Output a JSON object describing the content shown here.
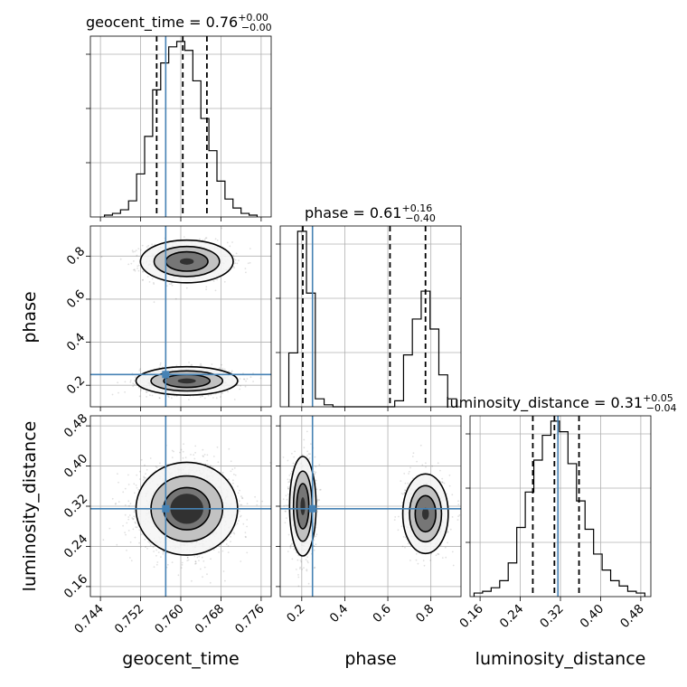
{
  "chart_data": {
    "type": "corner",
    "parameters": [
      "geocent_time",
      "phase",
      "luminosity_distance"
    ],
    "truths": {
      "geocent_time": 0.757,
      "phase": 0.25,
      "luminosity_distance": 0.315
    },
    "colors": {
      "truth": "#4682b4",
      "hist": "#000000",
      "grid": "#b0b0b0"
    },
    "panels": [
      {
        "id": "geocent_time",
        "kind": "hist1d",
        "title": {
          "text": "geocent_time = 0.76",
          "sup": "+0.00",
          "sub": "−0.00"
        },
        "xlim": [
          0.742,
          0.778
        ],
        "xticks": [
          0.744,
          0.752,
          0.76,
          0.768,
          0.776
        ],
        "xtick_labels": [
          "0.744",
          "0.752",
          "0.760",
          "0.768",
          "0.776"
        ],
        "bin_edges": [
          0.7448,
          0.7464,
          0.748,
          0.7496,
          0.7512,
          0.7528,
          0.7544,
          0.756,
          0.7576,
          0.7592,
          0.7608,
          0.7624,
          0.764,
          0.7656,
          0.7672,
          0.7688,
          0.7704,
          0.772,
          0.7736,
          0.7752
        ],
        "counts": [
          0.01,
          0.02,
          0.04,
          0.09,
          0.24,
          0.45,
          0.71,
          0.86,
          0.95,
          0.98,
          0.93,
          0.76,
          0.55,
          0.37,
          0.2,
          0.1,
          0.05,
          0.02,
          0.01
        ],
        "quantiles": [
          0.7552,
          0.7604,
          0.7652
        ],
        "truth": 0.757
      },
      {
        "id": "phase",
        "kind": "hist1d",
        "title": {
          "text": "phase = 0.61",
          "sup": "+0.16",
          "sub": "−0.40"
        },
        "xlim": [
          0.1,
          0.94
        ],
        "xticks": [
          0.2,
          0.4,
          0.6,
          0.8
        ],
        "xtick_labels": [
          "0.2",
          "0.4",
          "0.6",
          "0.8"
        ],
        "bin_edges": [
          0.14,
          0.181,
          0.222,
          0.263,
          0.304,
          0.345,
          0.386,
          0.427,
          0.468,
          0.509,
          0.55,
          0.591,
          0.632,
          0.673,
          0.714,
          0.755,
          0.796,
          0.837,
          0.878,
          0.919
        ],
        "counts": [
          0.27,
          0.88,
          0.57,
          0.04,
          0.01,
          0.0,
          0.0,
          0.0,
          0.0,
          0.0,
          0.0,
          0.0,
          0.03,
          0.26,
          0.44,
          0.58,
          0.39,
          0.16,
          0.04
        ],
        "quantiles": [
          0.205,
          0.61,
          0.775
        ],
        "truth": 0.25
      },
      {
        "id": "luminosity_distance",
        "kind": "hist1d",
        "title": {
          "text": "luminosity_distance = 0.31",
          "sup": "+0.05",
          "sub": "−0.04"
        },
        "xlim": [
          0.14,
          0.5
        ],
        "xticks": [
          0.16,
          0.24,
          0.32,
          0.4,
          0.48
        ],
        "xtick_labels": [
          "0.16",
          "0.24",
          "0.32",
          "0.40",
          "0.48"
        ],
        "bin_edges": [
          0.148,
          0.165,
          0.182,
          0.199,
          0.216,
          0.233,
          0.25,
          0.267,
          0.284,
          0.301,
          0.318,
          0.335,
          0.352,
          0.369,
          0.386,
          0.403,
          0.42,
          0.437,
          0.454,
          0.471,
          0.488
        ],
        "counts": [
          0.02,
          0.03,
          0.05,
          0.09,
          0.19,
          0.39,
          0.59,
          0.77,
          0.91,
          0.99,
          0.93,
          0.75,
          0.54,
          0.38,
          0.24,
          0.15,
          0.09,
          0.06,
          0.03,
          0.02
        ],
        "quantiles": [
          0.265,
          0.308,
          0.357
        ],
        "truth": 0.315
      },
      {
        "id": "geocent_time-phase",
        "kind": "hist2d",
        "x": "geocent_time",
        "y": "phase",
        "xlim": [
          0.742,
          0.778
        ],
        "ylim": [
          0.1,
          0.94
        ],
        "yticks": [
          0.2,
          0.4,
          0.6,
          0.8
        ],
        "ytick_labels": [
          "0.2",
          "0.4",
          "0.6",
          "0.8"
        ],
        "modes": [
          {
            "cx": 0.7612,
            "cy": 0.775,
            "sx": 0.0042,
            "sy": 0.045,
            "w": 0.45
          },
          {
            "cx": 0.7612,
            "cy": 0.22,
            "sx": 0.0046,
            "sy": 0.03,
            "w": 0.55
          }
        ],
        "truth": [
          0.757,
          0.25
        ]
      },
      {
        "id": "geocent_time-luminosity_distance",
        "kind": "hist2d",
        "x": "geocent_time",
        "y": "luminosity_distance",
        "xlim": [
          0.742,
          0.778
        ],
        "ylim": [
          0.14,
          0.5
        ],
        "yticks": [
          0.16,
          0.24,
          0.32,
          0.4,
          0.48
        ],
        "ytick_labels": [
          "0.16",
          "0.24",
          "0.32",
          "0.40",
          "0.48"
        ],
        "modes": [
          {
            "cx": 0.7612,
            "cy": 0.315,
            "sx": 0.0046,
            "sy": 0.042,
            "w": 1.0
          }
        ],
        "truth": [
          0.757,
          0.315
        ]
      },
      {
        "id": "phase-luminosity_distance",
        "kind": "hist2d",
        "x": "phase",
        "y": "luminosity_distance",
        "xlim": [
          0.1,
          0.94
        ],
        "ylim": [
          0.14,
          0.5
        ],
        "modes": [
          {
            "cx": 0.205,
            "cy": 0.32,
            "sx": 0.028,
            "sy": 0.045,
            "w": 0.55
          },
          {
            "cx": 0.775,
            "cy": 0.305,
            "sx": 0.048,
            "sy": 0.036,
            "w": 0.45
          }
        ],
        "truth": [
          0.25,
          0.315
        ]
      }
    ],
    "axis_labels": {
      "x": [
        "geocent_time",
        "phase",
        "luminosity_distance"
      ],
      "y": [
        "phase",
        "luminosity_distance"
      ]
    },
    "grid": true
  }
}
